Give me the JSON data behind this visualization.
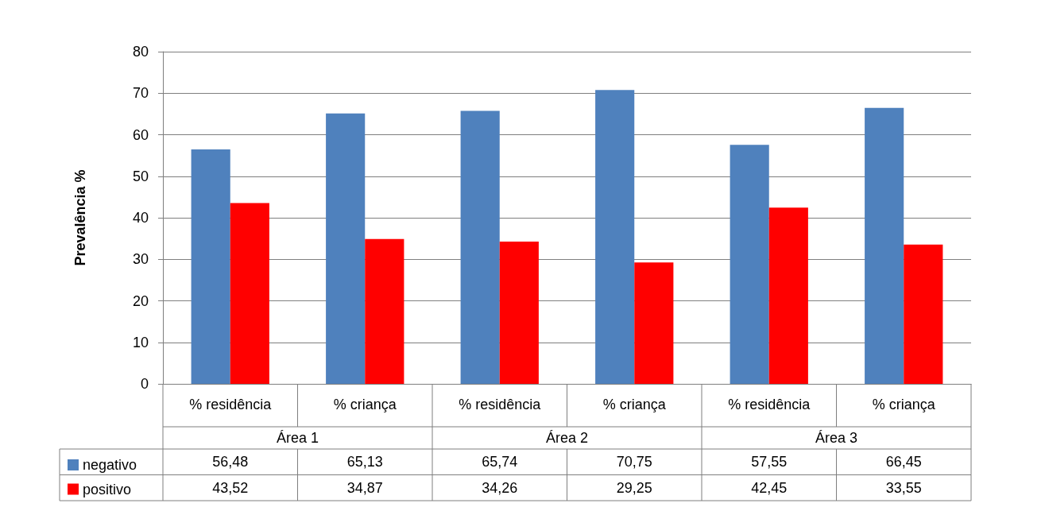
{
  "chart_data": {
    "type": "bar",
    "ylabel": "Prevalência %",
    "categories": [
      "% residência",
      "% criança",
      "% residência",
      "% criança",
      "% residência",
      "% criança"
    ],
    "annotations": [
      "Área 1",
      "Área 2",
      "Área 3"
    ],
    "series": [
      {
        "name": "negativo",
        "color": "#4f81bd",
        "values": [
          56.48,
          65.13,
          65.74,
          70.75,
          57.55,
          66.45
        ],
        "value_labels": [
          "56,48",
          "65,13",
          "65,74",
          "70,75",
          "57,55",
          "66,45"
        ]
      },
      {
        "name": "positivo",
        "color": "#ff0000",
        "values": [
          43.52,
          34.87,
          34.26,
          29.25,
          42.45,
          33.55
        ],
        "value_labels": [
          "43,52",
          "34,87",
          "34,26",
          "29,25",
          "42,45",
          "33,55"
        ]
      }
    ],
    "ylim": [
      0,
      80
    ],
    "yticks": [
      0,
      10,
      20,
      30,
      40,
      50,
      60,
      70,
      80
    ],
    "grid": "y",
    "legend": "bottom left"
  }
}
